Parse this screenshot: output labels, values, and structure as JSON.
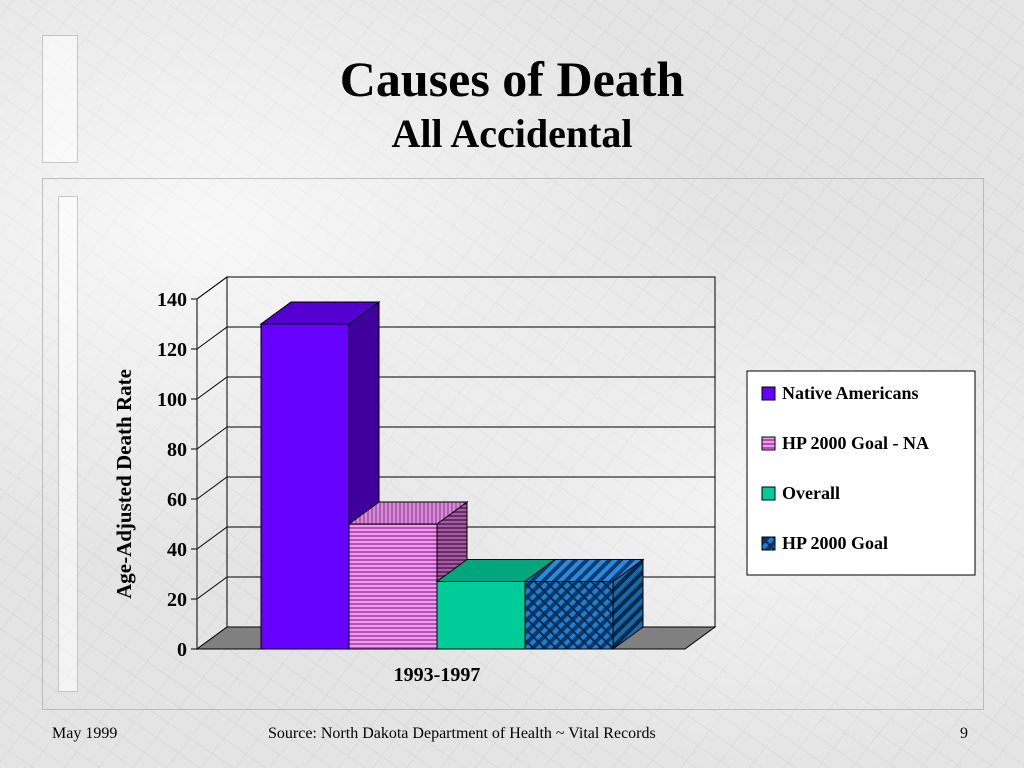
{
  "slide": {
    "title": "Causes of Death",
    "subtitle": "All Accidental"
  },
  "footer": {
    "date": "May 1999",
    "source": "Source:  North Dakota Department of Health ~ Vital Records",
    "page_number": "9"
  },
  "chart_data": {
    "type": "bar",
    "style": "3d-clustered",
    "categories": [
      "1993-1997"
    ],
    "series": [
      {
        "name": "Native Americans",
        "values": [
          130
        ],
        "color": "#6600ff",
        "pattern": "solid"
      },
      {
        "name": "HP 2000 Goal - NA",
        "values": [
          50
        ],
        "color": "#cc66cc",
        "pattern": "horizontal-stripes"
      },
      {
        "name": "Overall",
        "values": [
          27
        ],
        "color": "#00cc99",
        "pattern": "solid"
      },
      {
        "name": "HP 2000 Goal",
        "values": [
          27
        ],
        "color": "#0066aa",
        "pattern": "diagonal-weave"
      }
    ],
    "ylabel": "Age-Adjusted Death Rate",
    "xlabel": "",
    "ylim": [
      0,
      140
    ],
    "yticks": [
      "0",
      "20",
      "40",
      "60",
      "80",
      "100",
      "120",
      "140"
    ],
    "grid": true,
    "legend": "right",
    "floor_color": "#808080"
  }
}
